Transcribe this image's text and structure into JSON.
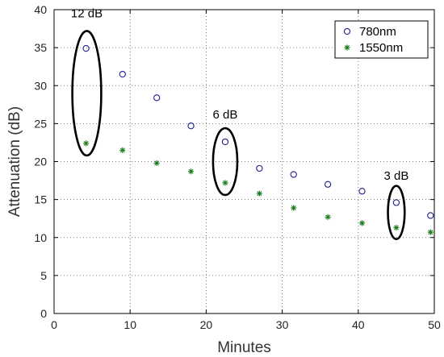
{
  "chart_data": {
    "type": "scatter",
    "title": "",
    "xlabel": "Minutes",
    "ylabel": "Attenuation (dB)",
    "xlim": [
      0,
      50
    ],
    "ylim": [
      0,
      40
    ],
    "xticks": [
      0,
      10,
      20,
      30,
      40,
      50
    ],
    "yticks": [
      0,
      5,
      10,
      15,
      20,
      25,
      30,
      35,
      40
    ],
    "grid": true,
    "legend_position": "top-right",
    "series": [
      {
        "name": "780nm",
        "marker": "circle",
        "color": "#1f1f8f",
        "points": [
          {
            "x": 4.2,
            "y": 34.9
          },
          {
            "x": 9.0,
            "y": 31.5
          },
          {
            "x": 13.5,
            "y": 28.4
          },
          {
            "x": 18.0,
            "y": 24.7
          },
          {
            "x": 22.5,
            "y": 22.6
          },
          {
            "x": 27.0,
            "y": 19.1
          },
          {
            "x": 31.5,
            "y": 18.3
          },
          {
            "x": 36.0,
            "y": 17.0
          },
          {
            "x": 40.5,
            "y": 16.1
          },
          {
            "x": 45.0,
            "y": 14.6
          },
          {
            "x": 49.5,
            "y": 12.9
          }
        ]
      },
      {
        "name": "1550nm",
        "marker": "star",
        "color": "#1a7a1a",
        "points": [
          {
            "x": 4.2,
            "y": 22.4
          },
          {
            "x": 9.0,
            "y": 21.5
          },
          {
            "x": 13.5,
            "y": 19.8
          },
          {
            "x": 18.0,
            "y": 18.7
          },
          {
            "x": 22.5,
            "y": 17.2
          },
          {
            "x": 27.0,
            "y": 15.8
          },
          {
            "x": 31.5,
            "y": 13.9
          },
          {
            "x": 36.0,
            "y": 12.7
          },
          {
            "x": 40.5,
            "y": 11.9
          },
          {
            "x": 45.0,
            "y": 11.3
          },
          {
            "x": 49.5,
            "y": 10.7
          }
        ]
      }
    ],
    "annotations": [
      {
        "text": "12 dB",
        "x": 4.3,
        "y": 39.0,
        "ellipse": {
          "cx": 4.3,
          "cy": 29.0,
          "rx": 1.9,
          "ry": 8.2
        }
      },
      {
        "text": "6 dB",
        "x": 22.5,
        "y": 25.7,
        "ellipse": {
          "cx": 22.5,
          "cy": 20.0,
          "rx": 1.6,
          "ry": 4.4
        }
      },
      {
        "text": "3 dB",
        "x": 45.0,
        "y": 17.6,
        "ellipse": {
          "cx": 45.0,
          "cy": 13.3,
          "rx": 1.1,
          "ry": 3.5
        }
      }
    ]
  }
}
